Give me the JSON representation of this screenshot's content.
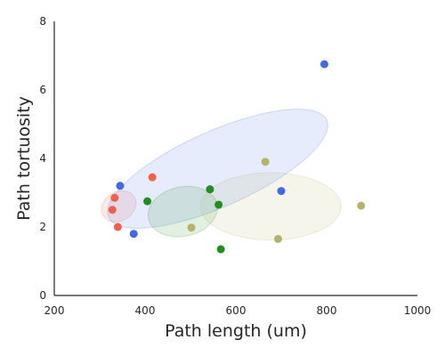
{
  "chart_data": {
    "type": "scatter",
    "xlabel": "Path length (um)",
    "ylabel": "Path tortuosity",
    "xlim": [
      200,
      1000
    ],
    "ylim": [
      0,
      8
    ],
    "xticks": [
      "200",
      "400",
      "600",
      "800",
      "1000"
    ],
    "yticks": [
      "0",
      "2",
      "4",
      "6",
      "8"
    ],
    "grid": false,
    "legend": "none",
    "series": [
      {
        "color": "#f0604d",
        "points": [
          {
            "x": 333,
            "y": 2.85
          },
          {
            "x": 328,
            "y": 2.5
          },
          {
            "x": 340,
            "y": 2.0
          },
          {
            "x": 416,
            "y": 3.45
          }
        ],
        "ellipse": {
          "cx": 342,
          "cy": 2.6,
          "rx": 40,
          "ry": 0.42,
          "angle": 32
        }
      },
      {
        "color": "#4169e1",
        "points": [
          {
            "x": 345,
            "y": 3.2
          },
          {
            "x": 375,
            "y": 1.8
          },
          {
            "x": 700,
            "y": 3.05
          },
          {
            "x": 795,
            "y": 6.75
          }
        ],
        "ellipse": {
          "cx": 560,
          "cy": 3.7,
          "rx": 263,
          "ry": 1.1,
          "angle": 24
        }
      },
      {
        "color": "#228b22",
        "points": [
          {
            "x": 405,
            "y": 2.75
          },
          {
            "x": 543,
            "y": 3.1
          },
          {
            "x": 562,
            "y": 2.65
          },
          {
            "x": 567,
            "y": 1.35
          }
        ],
        "ellipse": {
          "cx": 483,
          "cy": 2.45,
          "rx": 77,
          "ry": 0.72,
          "angle": 12
        }
      },
      {
        "color": "#b5b36b",
        "points": [
          {
            "x": 502,
            "y": 1.98
          },
          {
            "x": 665,
            "y": 3.9
          },
          {
            "x": 693,
            "y": 1.65
          },
          {
            "x": 876,
            "y": 2.62
          }
        ],
        "ellipse": {
          "cx": 677,
          "cy": 2.6,
          "rx": 155,
          "ry": 0.98,
          "angle": 0
        }
      }
    ]
  }
}
